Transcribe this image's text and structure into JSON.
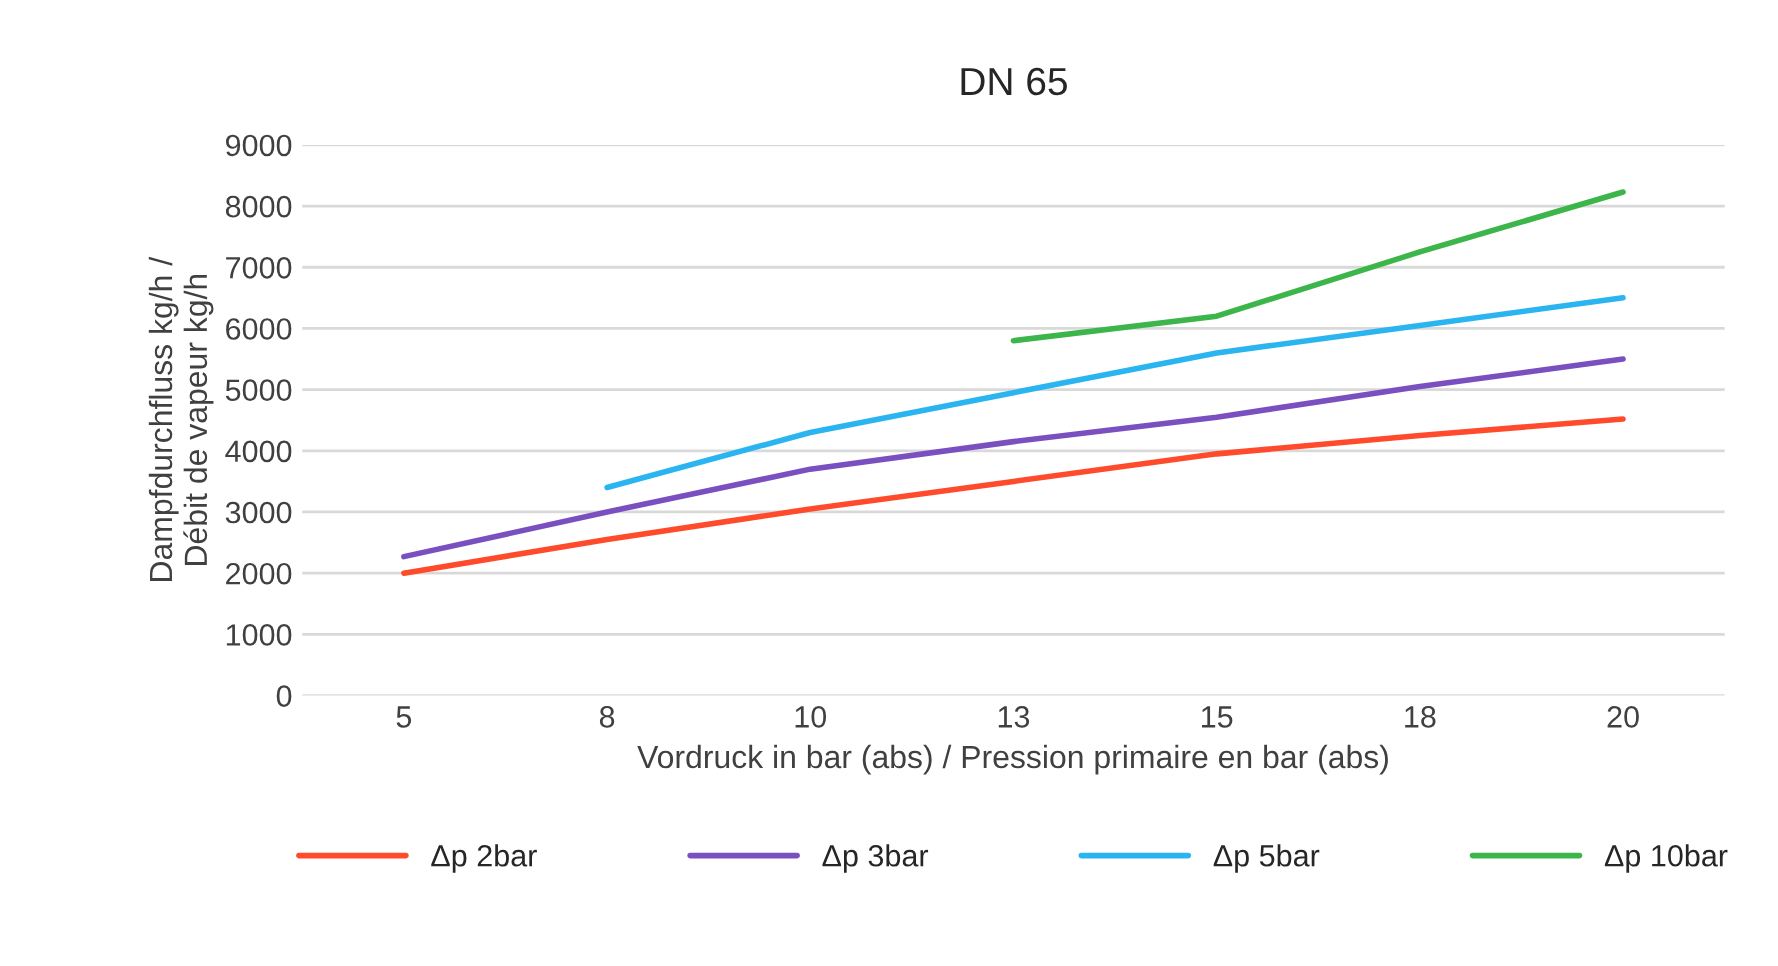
{
  "chart_data": {
    "type": "line",
    "title": "DN 65",
    "xlabel": "Vordruck in bar (abs) / Pression primaire en bar (abs)",
    "ylabel": "Dampfdurchfluss kg/h /\nDébit de vapeur kg/h",
    "categories": [
      "5",
      "8",
      "10",
      "13",
      "15",
      "18",
      "20"
    ],
    "series": [
      {
        "name": "Δp 2bar",
        "color": "#ff4b2b",
        "values": [
          2000,
          2550,
          3050,
          3500,
          3950,
          4250,
          4520
        ]
      },
      {
        "name": "Δp 3bar",
        "color": "#7a4fc0",
        "values": [
          2270,
          3000,
          3700,
          4150,
          4550,
          5050,
          5500
        ]
      },
      {
        "name": "Δp 5bar",
        "color": "#2bb5f0",
        "values": [
          null,
          3400,
          4300,
          4950,
          5600,
          6050,
          6500
        ]
      },
      {
        "name": "Δp 10bar",
        "color": "#3cb54a",
        "values": [
          null,
          null,
          null,
          5800,
          6200,
          7250,
          8230
        ]
      }
    ],
    "ylim": [
      0,
      9000
    ],
    "yticks": [
      0,
      1000,
      2000,
      3000,
      4000,
      5000,
      6000,
      7000,
      8000,
      9000
    ],
    "grid": "y",
    "legend": "bottom",
    "marker": "none",
    "line_style": "solid"
  }
}
